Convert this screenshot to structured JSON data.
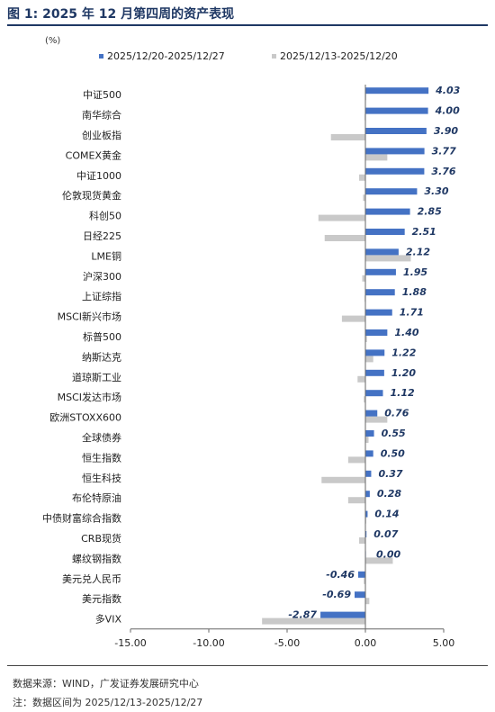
{
  "title": "图 1:  2025 年 12 月第四周的资产表现",
  "source": "数据来源：WIND，广发证券发展研究中心",
  "footnote": "注：数据区间为 2025/12/13-2025/12/27",
  "chart_data": {
    "type": "bar",
    "orientation": "horizontal",
    "unit_label": "(%)",
    "legend_position": "top",
    "grid": false,
    "xlim": [
      -15,
      5
    ],
    "xticks": [
      "-15.00",
      "-10.00",
      "-5.00",
      "0.00",
      "5.00"
    ],
    "categories": [
      "中证500",
      "南华综合",
      "创业板指",
      "COMEX黄金",
      "中证1000",
      "伦敦现货黄金",
      "科创50",
      "日经225",
      "LME铜",
      "沪深300",
      "上证综指",
      "MSCI新兴市场",
      "标普500",
      "纳斯达克",
      "道琼斯工业",
      "MSCI发达市场",
      "欧洲STOXX600",
      "全球债券",
      "恒生指数",
      "恒生科技",
      "布伦特原油",
      "中债财富综合指数",
      "CRB现货",
      "螺纹钢指数",
      "美元兑人民币",
      "美元指数",
      "多VIX"
    ],
    "series": [
      {
        "name": "2025/12/20-2025/12/27",
        "color": "#4472c4",
        "values": [
          4.03,
          4.0,
          3.9,
          3.77,
          3.76,
          3.3,
          2.85,
          2.51,
          2.12,
          1.95,
          1.88,
          1.71,
          1.4,
          1.22,
          1.2,
          1.12,
          0.76,
          0.55,
          0.5,
          0.37,
          0.28,
          0.14,
          0.07,
          0.0,
          -0.46,
          -0.69,
          -2.87
        ],
        "labels": [
          "4.03",
          "4.00",
          "3.90",
          "3.77",
          "3.76",
          "3.30",
          "2.85",
          "2.51",
          "2.12",
          "1.95",
          "1.88",
          "1.71",
          "1.40",
          "1.22",
          "1.20",
          "1.12",
          "0.76",
          "0.55",
          "0.50",
          "0.37",
          "0.28",
          "0.14",
          "0.07",
          "0.00",
          "-0.46",
          "-0.69",
          "-2.87"
        ]
      },
      {
        "name": "2025/12/13-2025/12/20",
        "color": "#c9c9c9",
        "values": [
          0.05,
          -0.05,
          -2.2,
          1.4,
          -0.4,
          -0.15,
          -3.0,
          -2.6,
          2.9,
          -0.2,
          -0.05,
          -1.5,
          0.1,
          0.5,
          -0.5,
          -0.1,
          1.4,
          0.2,
          -1.1,
          -2.8,
          -1.1,
          0.05,
          -0.4,
          1.75,
          -0.1,
          0.25,
          -6.6
        ]
      }
    ]
  }
}
